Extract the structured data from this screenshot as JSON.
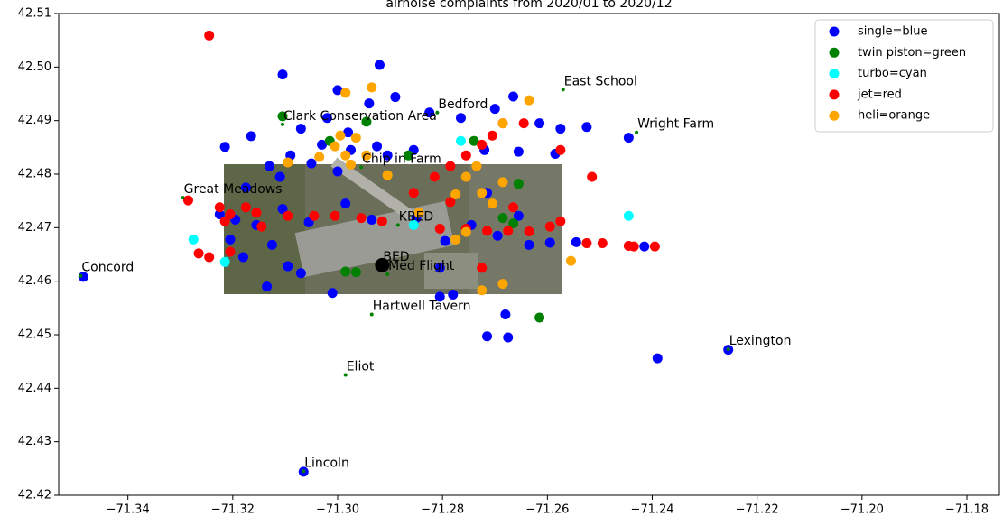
{
  "chart_data": {
    "type": "scatter",
    "title": "airnoise complaints from 2020/01 to 2020/12",
    "xlim": [
      -71.3532,
      -71.1738
    ],
    "ylim": [
      42.42,
      42.51
    ],
    "xticks": [
      {
        "value": -71.34,
        "label": "−71.34"
      },
      {
        "value": -71.32,
        "label": "−71.32"
      },
      {
        "value": -71.3,
        "label": "−71.30"
      },
      {
        "value": -71.28,
        "label": "−71.28"
      },
      {
        "value": -71.26,
        "label": "−71.26"
      },
      {
        "value": -71.24,
        "label": "−71.24"
      },
      {
        "value": -71.22,
        "label": "−71.22"
      },
      {
        "value": -71.2,
        "label": "−71.20"
      },
      {
        "value": -71.18,
        "label": "−71.18"
      }
    ],
    "yticks": [
      42.42,
      42.43,
      42.44,
      42.45,
      42.46,
      42.47,
      42.48,
      42.49,
      {
        "value": 42.5,
        "label": "42.50"
      },
      42.51
    ],
    "legend": "upper right",
    "series": [
      {
        "name": "single=blue",
        "color": "blue",
        "x": [
          -71.3485,
          -71.3065,
          -71.2255,
          -71.239,
          -71.2445,
          -71.2415,
          -71.2675,
          -71.2715,
          -71.268,
          -71.2805,
          -71.278,
          -71.301,
          -71.307,
          -71.3105,
          -71.292,
          -71.3,
          -71.294,
          -71.289,
          -71.3165,
          -71.3215,
          -71.302,
          -71.307,
          -71.298,
          -71.303,
          -71.309,
          -71.313,
          -71.305,
          -71.2975,
          -71.2925,
          -71.3,
          -71.311,
          -71.3175,
          -71.3225,
          -71.3195,
          -71.3155,
          -71.3105,
          -71.3205,
          -71.3125,
          -71.318,
          -71.3095,
          -71.3135,
          -71.3055,
          -71.2985,
          -71.2935,
          -71.285,
          -71.2795,
          -71.2745,
          -71.2695,
          -71.2655,
          -71.2595,
          -71.2545,
          -71.2825,
          -71.2765,
          -71.27,
          -71.2665,
          -71.2615,
          -71.2575,
          -71.2525,
          -71.2585,
          -71.2655,
          -71.272,
          -71.2855,
          -71.2905,
          -71.2715,
          -71.2805,
          -71.2635
        ],
        "y": [
          42.4608,
          42.4244,
          42.4472,
          42.4456,
          42.4868,
          42.4665,
          42.4495,
          42.4497,
          42.4538,
          42.4571,
          42.4575,
          42.4578,
          42.4615,
          42.4986,
          42.5004,
          42.4957,
          42.4932,
          42.4944,
          42.4871,
          42.4851,
          42.4905,
          42.4885,
          42.4878,
          42.4855,
          42.4835,
          42.4815,
          42.482,
          42.4845,
          42.4852,
          42.4805,
          42.4795,
          42.4775,
          42.4725,
          42.4715,
          42.4705,
          42.4735,
          42.4678,
          42.4668,
          42.4645,
          42.4628,
          42.459,
          42.471,
          42.4745,
          42.4715,
          42.4718,
          42.4675,
          42.4705,
          42.4685,
          42.4722,
          42.4672,
          42.4673,
          42.4915,
          42.4905,
          42.4922,
          42.4945,
          42.4895,
          42.4885,
          42.4888,
          42.4838,
          42.4842,
          42.4845,
          42.4845,
          42.4835,
          42.4765,
          42.4625,
          42.4668
        ]
      },
      {
        "name": "twin piston=green",
        "color": "green",
        "x": [
          -71.3105,
          -71.2945,
          -71.3015,
          -71.2865,
          -71.2685,
          -71.2665,
          -71.2985,
          -71.2965,
          -71.2615,
          -71.274,
          -71.2655
        ],
        "y": [
          42.4908,
          42.4898,
          42.4862,
          42.4835,
          42.4718,
          42.4708,
          42.4618,
          42.4617,
          42.4532,
          42.4862,
          42.4782
        ]
      },
      {
        "name": "turbo=cyan",
        "color": "cyan",
        "x": [
          -71.3275,
          -71.3215,
          -71.2445,
          -71.2815,
          -71.2855,
          -71.2765
        ],
        "y": [
          42.4678,
          42.4636,
          42.4722,
          42.4795,
          42.4705,
          42.4862
        ]
      },
      {
        "name": "jet=red",
        "color": "red",
        "x": [
          -71.3245,
          -71.3285,
          -71.3205,
          -71.3175,
          -71.3225,
          -71.3215,
          -71.3155,
          -71.3095,
          -71.3045,
          -71.3005,
          -71.2955,
          -71.2915,
          -71.3265,
          -71.3245,
          -71.3205,
          -71.3145,
          -71.2805,
          -71.2755,
          -71.2715,
          -71.2675,
          -71.2635,
          -71.2595,
          -71.2575,
          -71.2525,
          -71.2495,
          -71.2445,
          -71.2435,
          -71.2395,
          -71.2725,
          -71.2855,
          -71.2815,
          -71.2785,
          -71.2755,
          -71.2725,
          -71.2705,
          -71.2685,
          -71.2645,
          -71.2575,
          -71.2515,
          -71.2665,
          -71.2785
        ],
        "y": [
          42.5059,
          42.4751,
          42.4725,
          42.4738,
          42.4738,
          42.4712,
          42.4728,
          42.4722,
          42.4722,
          42.4722,
          42.4718,
          42.4712,
          42.4652,
          42.4645,
          42.4655,
          42.4702,
          42.4698,
          42.4698,
          42.4694,
          42.4694,
          42.4693,
          42.4702,
          42.4712,
          42.4671,
          42.4671,
          42.4666,
          42.4665,
          42.4665,
          42.4625,
          42.4765,
          42.4795,
          42.4815,
          42.4835,
          42.4855,
          42.4872,
          42.4895,
          42.4895,
          42.4845,
          42.4795,
          42.4738,
          42.4748
        ]
      },
      {
        "name": "heli=orange",
        "color": "orange",
        "x": [
          -71.2935,
          -71.2985,
          -71.2995,
          -71.2965,
          -71.3005,
          -71.2985,
          -71.2945,
          -71.3035,
          -71.2975,
          -71.3095,
          -71.2635,
          -71.2685,
          -71.2735,
          -71.2755,
          -71.2775,
          -71.2725,
          -71.2685,
          -71.2705,
          -71.2555,
          -71.2725,
          -71.2685,
          -71.2775,
          -71.2845,
          -71.2755,
          -71.2905
        ],
        "y": [
          42.4962,
          42.4952,
          42.4872,
          42.4868,
          42.4852,
          42.4835,
          42.4835,
          42.4832,
          42.4818,
          42.4822,
          42.4938,
          42.4895,
          42.4815,
          42.4795,
          42.4762,
          42.4765,
          42.4785,
          42.4745,
          42.4638,
          42.4583,
          42.4595,
          42.4678,
          42.4728,
          42.4692,
          42.4798
        ]
      }
    ],
    "places": [
      {
        "label": "Concord",
        "x": -71.349,
        "y": 42.461,
        "color": "green"
      },
      {
        "label": "Lincoln",
        "x": -71.3065,
        "y": 42.4245,
        "color": "green"
      },
      {
        "label": "Lexington",
        "x": -71.2255,
        "y": 42.4473,
        "color": "green"
      },
      {
        "label": "East School",
        "x": -71.257,
        "y": 42.4958,
        "color": "green"
      },
      {
        "label": "Wright Farm",
        "x": -71.243,
        "y": 42.4878,
        "color": "green"
      },
      {
        "label": "Bedford",
        "x": -71.281,
        "y": 42.4915,
        "color": "green"
      },
      {
        "label": "Clark Conservation Area",
        "x": -71.3105,
        "y": 42.4893,
        "color": "green"
      },
      {
        "label": "Chip in Farm",
        "x": -71.2955,
        "y": 42.4813,
        "color": "green"
      },
      {
        "label": "Great Meadows",
        "x": -71.3295,
        "y": 42.4756,
        "color": "green"
      },
      {
        "label": "KBED",
        "x": -71.2885,
        "y": 42.4705,
        "color": "green"
      },
      {
        "label": "BED",
        "x": -71.2915,
        "y": 42.463,
        "color": "black"
      },
      {
        "label": "Med Flight",
        "x": -71.2905,
        "y": 42.4613,
        "color": "green"
      },
      {
        "label": "Hartwell Tavern",
        "x": -71.2935,
        "y": 42.4538,
        "color": "green"
      },
      {
        "label": "Eliot",
        "x": -71.2985,
        "y": 42.4425,
        "color": "green"
      }
    ]
  }
}
